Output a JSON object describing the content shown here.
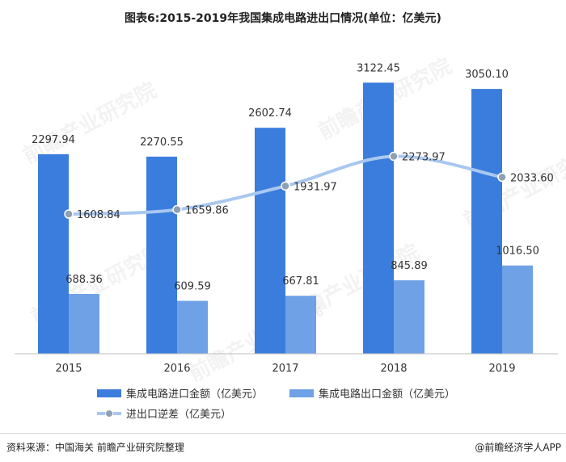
{
  "title": "图表6:2015-2019年我国集成电路进出口情况(单位：亿美元)",
  "footer": {
    "source": "资料来源：中国海关 前瞻产业研究院整理",
    "brand": "@前瞻经济学人APP"
  },
  "watermark": "前瞻产业研究院",
  "colors": {
    "import_bar": "#3b7ddd",
    "export_bar": "#6fa1e6",
    "balance_line": "#a9c8f0",
    "balance_marker": "#8fa0b5"
  },
  "chart_data": {
    "type": "bar",
    "categories": [
      "2015",
      "2016",
      "2017",
      "2018",
      "2019"
    ],
    "series": [
      {
        "name": "集成电路进口金额（亿美元）",
        "type": "bar",
        "values": [
          2297.94,
          2270.55,
          2602.74,
          3122.45,
          3050.1
        ],
        "labels": [
          "2297.94",
          "2270.55",
          "2602.74",
          "3122.45",
          "3050.10"
        ]
      },
      {
        "name": "集成电路出口金额（亿美元）",
        "type": "bar",
        "values": [
          688.36,
          609.59,
          667.81,
          845.89,
          1016.5
        ],
        "labels": [
          "688.36",
          "609.59",
          "667.81",
          "845.89",
          "1016.50"
        ]
      },
      {
        "name": "进出口逆差（亿美元）",
        "type": "line",
        "values": [
          1608.84,
          1659.86,
          1931.97,
          2273.97,
          2033.6
        ],
        "labels": [
          "1608.84",
          "1659.86",
          "1931.97",
          "2273.97",
          "2033.60"
        ]
      }
    ],
    "ylim": [
      0,
      3200
    ],
    "grid": false,
    "legend_position": "bottom"
  }
}
